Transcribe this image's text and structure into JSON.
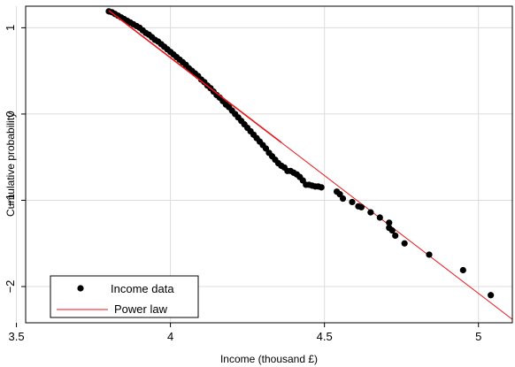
{
  "chart_data": {
    "type": "scatter",
    "title": "",
    "xlabel": "Income (thousand £)",
    "ylabel": "Cumulative probability",
    "xlim": [
      3.53,
      5.11
    ],
    "ylim": [
      -2.42,
      1.25
    ],
    "xticks": [
      3.5,
      4,
      4.5,
      5
    ],
    "xtick_labels": [
      "3.5",
      "4",
      "4.5",
      "5"
    ],
    "yticks": [
      1,
      0,
      -1,
      -2
    ],
    "ytick_labels": [
      "1",
      "0",
      "−1",
      "−2"
    ],
    "grid": true,
    "legend_position": "bottom-left",
    "series": [
      {
        "name": "Income data",
        "kind": "scatter",
        "color": "#000000",
        "points": [
          [
            3.8,
            1.19
          ],
          [
            3.81,
            1.18
          ],
          [
            3.82,
            1.16
          ],
          [
            3.83,
            1.14
          ],
          [
            3.84,
            1.12
          ],
          [
            3.85,
            1.1
          ],
          [
            3.86,
            1.08
          ],
          [
            3.87,
            1.06
          ],
          [
            3.88,
            1.04
          ],
          [
            3.89,
            1.02
          ],
          [
            3.9,
            1.0
          ],
          [
            3.91,
            0.97
          ],
          [
            3.92,
            0.94
          ],
          [
            3.93,
            0.92
          ],
          [
            3.94,
            0.89
          ],
          [
            3.95,
            0.86
          ],
          [
            3.96,
            0.84
          ],
          [
            3.97,
            0.81
          ],
          [
            3.98,
            0.78
          ],
          [
            3.99,
            0.75
          ],
          [
            4.0,
            0.72
          ],
          [
            4.01,
            0.69
          ],
          [
            4.02,
            0.66
          ],
          [
            4.03,
            0.63
          ],
          [
            4.04,
            0.6
          ],
          [
            4.05,
            0.57
          ],
          [
            4.06,
            0.53
          ],
          [
            4.07,
            0.5
          ],
          [
            4.08,
            0.47
          ],
          [
            4.09,
            0.44
          ],
          [
            4.1,
            0.4
          ],
          [
            4.11,
            0.37
          ],
          [
            4.12,
            0.33
          ],
          [
            4.13,
            0.3
          ],
          [
            4.14,
            0.26
          ],
          [
            4.15,
            0.22
          ],
          [
            4.16,
            0.19
          ],
          [
            4.17,
            0.15
          ],
          [
            4.18,
            0.11
          ],
          [
            4.19,
            0.08
          ],
          [
            4.2,
            0.04
          ],
          [
            4.21,
            0.0
          ],
          [
            4.22,
            -0.04
          ],
          [
            4.23,
            -0.08
          ],
          [
            4.24,
            -0.12
          ],
          [
            4.25,
            -0.16
          ],
          [
            4.26,
            -0.2
          ],
          [
            4.27,
            -0.24
          ],
          [
            4.28,
            -0.28
          ],
          [
            4.29,
            -0.32
          ],
          [
            4.3,
            -0.36
          ],
          [
            4.31,
            -0.4
          ],
          [
            4.32,
            -0.45
          ],
          [
            4.33,
            -0.49
          ],
          [
            4.34,
            -0.53
          ],
          [
            4.35,
            -0.57
          ],
          [
            4.36,
            -0.6
          ],
          [
            4.37,
            -0.62
          ],
          [
            4.38,
            -0.66
          ],
          [
            4.39,
            -0.66
          ],
          [
            4.4,
            -0.68
          ],
          [
            4.41,
            -0.7
          ],
          [
            4.42,
            -0.73
          ],
          [
            4.43,
            -0.77
          ],
          [
            4.44,
            -0.82
          ],
          [
            4.45,
            -0.82
          ],
          [
            4.46,
            -0.83
          ],
          [
            4.47,
            -0.84
          ],
          [
            4.48,
            -0.84
          ],
          [
            4.49,
            -0.85
          ],
          [
            4.54,
            -0.9
          ],
          [
            4.55,
            -0.93
          ],
          [
            4.56,
            -0.98
          ],
          [
            4.59,
            -1.02
          ],
          [
            4.61,
            -1.07
          ],
          [
            4.62,
            -1.08
          ],
          [
            4.65,
            -1.14
          ],
          [
            4.68,
            -1.2
          ],
          [
            4.71,
            -1.26
          ],
          [
            4.71,
            -1.32
          ],
          [
            4.72,
            -1.35
          ],
          [
            4.73,
            -1.41
          ],
          [
            4.76,
            -1.5
          ],
          [
            4.84,
            -1.63
          ],
          [
            4.95,
            -1.81
          ],
          [
            5.04,
            -2.1
          ]
        ]
      },
      {
        "name": "Power law",
        "kind": "line",
        "color": "#e8141a",
        "x": [
          3.8,
          5.11
        ],
        "y": [
          1.2,
          -2.38
        ]
      }
    ]
  }
}
